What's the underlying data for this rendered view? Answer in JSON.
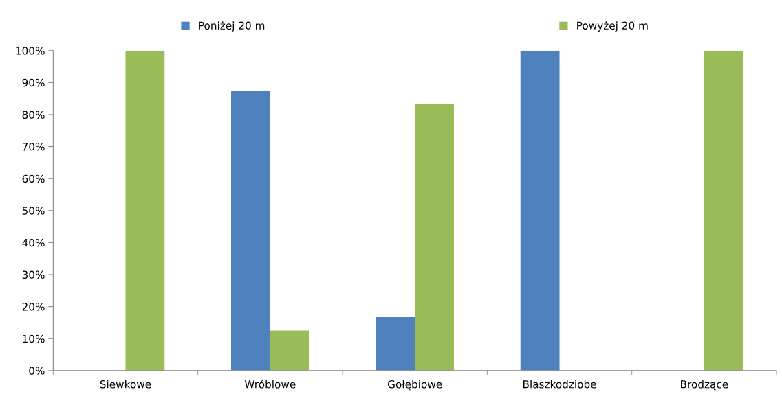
{
  "chart_data": {
    "type": "bar",
    "categories": [
      "Siewkowe",
      "Wróblowe",
      "Gołębiowe",
      "Blaszkodziobe",
      "Brodzące"
    ],
    "series": [
      {
        "name": "Poniżej 20 m",
        "color": "#4f81bd",
        "values": [
          0,
          87.5,
          16.7,
          100,
          0
        ]
      },
      {
        "name": "Powyżej 20 m",
        "color": "#9bbb59",
        "values": [
          100,
          12.5,
          83.3,
          0,
          100
        ]
      }
    ],
    "ylim": [
      0,
      100
    ],
    "yticks": [
      {
        "value": 0,
        "label": "0%"
      },
      {
        "value": 10,
        "label": "10%"
      },
      {
        "value": 20,
        "label": "20%"
      },
      {
        "value": 30,
        "label": "30%"
      },
      {
        "value": 40,
        "label": "40%"
      },
      {
        "value": 50,
        "label": "50%"
      },
      {
        "value": 60,
        "label": "60%"
      },
      {
        "value": 70,
        "label": "70%"
      },
      {
        "value": 80,
        "label": "80%"
      },
      {
        "value": 90,
        "label": "90%"
      },
      {
        "value": 100,
        "label": "100%"
      }
    ],
    "grid": false,
    "legend": "top"
  }
}
